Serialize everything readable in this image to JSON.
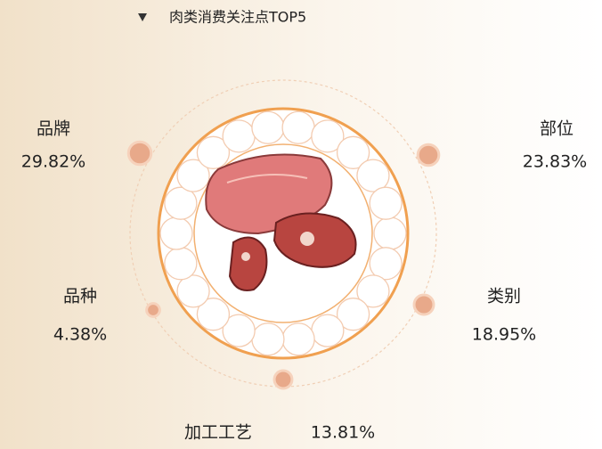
{
  "chart_data": {
    "type": "bubble-ring",
    "title": "肉类消费关注点TOP5",
    "categories": [
      "品牌",
      "部位",
      "类别",
      "加工工艺",
      "品种"
    ],
    "values": [
      29.82,
      23.83,
      18.95,
      13.81,
      4.38
    ],
    "value_labels": [
      "29.82%",
      "23.83%",
      "18.95%",
      "13.81%",
      "4.38%"
    ],
    "color": "#e8a98a"
  }
}
